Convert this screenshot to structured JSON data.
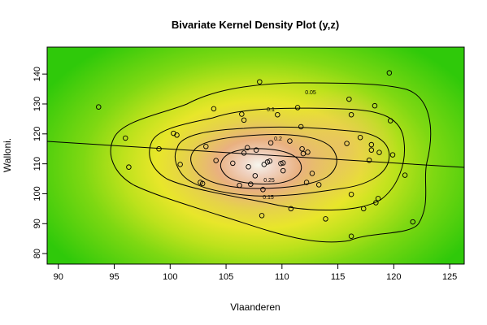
{
  "chart_data": {
    "type": "scatter",
    "title": "Bivariate Kernel Density Plot (y,z)",
    "xlabel": "Vlaanderen",
    "ylabel": "Walloni.",
    "xlim": [
      89,
      126.3
    ],
    "ylim": [
      76.5,
      149
    ],
    "x_ticks": [
      90,
      95,
      100,
      105,
      110,
      115,
      120,
      125
    ],
    "y_ticks": [
      80,
      90,
      100,
      110,
      120,
      130,
      140
    ],
    "density_center": [
      109.0,
      110.5
    ],
    "regression_line": {
      "x": [
        89,
        126.3
      ],
      "y": [
        117.5,
        108.8
      ]
    },
    "contour_levels": [
      "0.05",
      "0.1",
      "0.15",
      "0.2",
      "0.25"
    ],
    "points": [
      {
        "x": 93.6,
        "y": 129.0
      },
      {
        "x": 96.0,
        "y": 118.6
      },
      {
        "x": 96.3,
        "y": 108.9
      },
      {
        "x": 99.0,
        "y": 115.0
      },
      {
        "x": 100.3,
        "y": 120.2
      },
      {
        "x": 100.6,
        "y": 119.6
      },
      {
        "x": 100.9,
        "y": 109.8
      },
      {
        "x": 102.7,
        "y": 103.8
      },
      {
        "x": 102.9,
        "y": 103.4
      },
      {
        "x": 103.2,
        "y": 115.8
      },
      {
        "x": 103.9,
        "y": 128.4
      },
      {
        "x": 104.1,
        "y": 111.1
      },
      {
        "x": 105.6,
        "y": 110.2
      },
      {
        "x": 106.2,
        "y": 102.8
      },
      {
        "x": 106.4,
        "y": 126.6
      },
      {
        "x": 106.6,
        "y": 124.6
      },
      {
        "x": 106.6,
        "y": 113.6
      },
      {
        "x": 106.9,
        "y": 115.4
      },
      {
        "x": 107.0,
        "y": 109.0
      },
      {
        "x": 107.2,
        "y": 103.2
      },
      {
        "x": 107.6,
        "y": 106.0
      },
      {
        "x": 107.7,
        "y": 114.6
      },
      {
        "x": 108.0,
        "y": 137.4
      },
      {
        "x": 108.2,
        "y": 92.7
      },
      {
        "x": 108.3,
        "y": 101.4
      },
      {
        "x": 108.4,
        "y": 109.8
      },
      {
        "x": 108.7,
        "y": 110.6
      },
      {
        "x": 108.9,
        "y": 110.9
      },
      {
        "x": 109.0,
        "y": 117.0
      },
      {
        "x": 109.6,
        "y": 126.4
      },
      {
        "x": 109.9,
        "y": 110.1
      },
      {
        "x": 110.1,
        "y": 107.7
      },
      {
        "x": 110.1,
        "y": 110.3
      },
      {
        "x": 110.7,
        "y": 117.6
      },
      {
        "x": 110.8,
        "y": 95.0
      },
      {
        "x": 111.4,
        "y": 128.8
      },
      {
        "x": 111.7,
        "y": 122.4
      },
      {
        "x": 111.8,
        "y": 115.0
      },
      {
        "x": 111.9,
        "y": 113.4
      },
      {
        "x": 112.2,
        "y": 103.8
      },
      {
        "x": 112.3,
        "y": 113.9
      },
      {
        "x": 112.7,
        "y": 106.8
      },
      {
        "x": 113.3,
        "y": 103.0
      },
      {
        "x": 113.9,
        "y": 91.6
      },
      {
        "x": 115.8,
        "y": 116.8
      },
      {
        "x": 116.0,
        "y": 131.6
      },
      {
        "x": 116.2,
        "y": 126.4
      },
      {
        "x": 116.2,
        "y": 99.8
      },
      {
        "x": 116.2,
        "y": 85.8
      },
      {
        "x": 117.0,
        "y": 118.8
      },
      {
        "x": 117.3,
        "y": 95.0
      },
      {
        "x": 117.8,
        "y": 111.2
      },
      {
        "x": 118.0,
        "y": 116.4
      },
      {
        "x": 118.0,
        "y": 114.6
      },
      {
        "x": 118.3,
        "y": 129.4
      },
      {
        "x": 118.4,
        "y": 97.0
      },
      {
        "x": 118.6,
        "y": 98.4
      },
      {
        "x": 118.7,
        "y": 113.8
      },
      {
        "x": 119.6,
        "y": 140.4
      },
      {
        "x": 119.7,
        "y": 124.4
      },
      {
        "x": 119.9,
        "y": 113.0
      },
      {
        "x": 121.0,
        "y": 106.2
      },
      {
        "x": 121.7,
        "y": 90.6
      }
    ]
  }
}
